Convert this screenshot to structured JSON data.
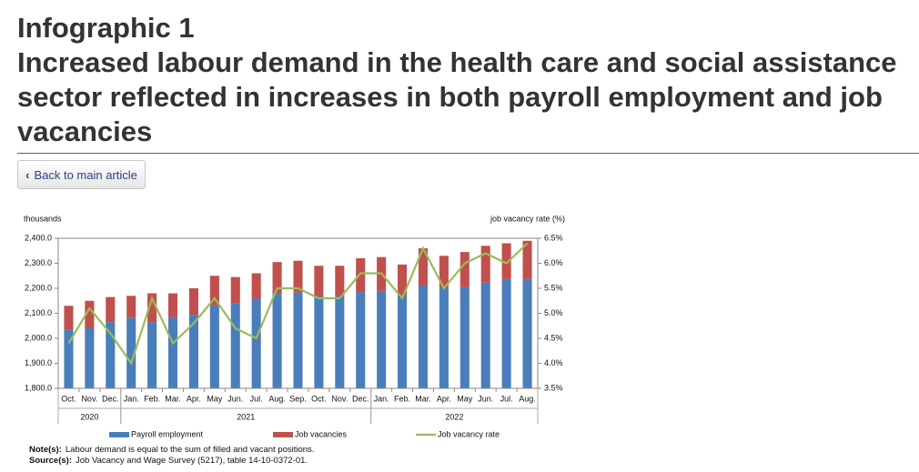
{
  "header": {
    "title": [
      "Infographic 1",
      "Increased labour demand in the health care and social assistance",
      "sector reflected in increases in both payroll employment and job",
      "vacancies"
    ],
    "back_button": "Back to main article"
  },
  "chart_data": {
    "type": "stacked-bar-line",
    "y_label": "thousands",
    "y2_label": "job vacancy rate (%)",
    "category_groups": [
      {
        "label": "2020",
        "categories": [
          "Oct.",
          "Nov.",
          "Dec."
        ]
      },
      {
        "label": "2021",
        "categories": [
          "Jan.",
          "Feb.",
          "Mar.",
          "Apr.",
          "May",
          "Jun.",
          "Jul.",
          "Aug.",
          "Sep.",
          "Oct.",
          "Nov.",
          "Dec."
        ]
      },
      {
        "label": "2022",
        "categories": [
          "Jan.",
          "Feb.",
          "Mar.",
          "Apr.",
          "May",
          "Jun.",
          "Jul.",
          "Aug."
        ]
      }
    ],
    "series": [
      {
        "name": "Payroll employment",
        "color": "#4a7ebb",
        "values": [
          2036,
          2040,
          2065,
          2083,
          2064,
          2084,
          2094,
          2131,
          2139,
          2158,
          2178,
          2183,
          2169,
          2169,
          2185,
          2190,
          2173,
          2211,
          2202,
          2204,
          2223,
          2237,
          2237
        ]
      },
      {
        "name": "Job vacancies",
        "color": "#c0504d",
        "values": [
          94,
          110,
          100,
          87,
          116,
          96,
          106,
          119,
          106,
          102,
          127,
          127,
          121,
          121,
          135,
          135,
          122,
          149,
          128,
          141,
          147,
          143,
          153
        ]
      },
      {
        "name": "Job vacancy rate",
        "color": "#9bbb59",
        "axis": "y2",
        "values": [
          4.4,
          5.1,
          4.6,
          4.0,
          5.3,
          4.4,
          4.8,
          5.3,
          4.7,
          4.5,
          5.5,
          5.5,
          5.3,
          5.3,
          5.8,
          5.8,
          5.3,
          6.3,
          5.5,
          6.0,
          6.2,
          6.0,
          6.4
        ]
      }
    ],
    "ylim": [
      1800,
      2400
    ],
    "yticks": [
      {
        "value": 1800,
        "label": "1,800.0"
      },
      {
        "value": 1900,
        "label": "1,900.0"
      },
      {
        "value": 2000,
        "label": "2,000.0"
      },
      {
        "value": 2100,
        "label": "2,100.0"
      },
      {
        "value": 2200,
        "label": "2,200.0"
      },
      {
        "value": 2300,
        "label": "2,300.0"
      },
      {
        "value": 2400,
        "label": "2,400.0"
      }
    ],
    "y2lim": [
      3.5,
      6.5
    ],
    "y2ticks": [
      {
        "value": 3.5,
        "label": "3.5%"
      },
      {
        "value": 4.0,
        "label": "4.0%"
      },
      {
        "value": 4.5,
        "label": "4.5%"
      },
      {
        "value": 5.0,
        "label": "5.0%"
      },
      {
        "value": 5.5,
        "label": "5.5%"
      },
      {
        "value": 6.0,
        "label": "6.0%"
      },
      {
        "value": 6.5,
        "label": "6.5%"
      }
    ],
    "grid": false,
    "note_label": "Note(s):",
    "note": "Labour demand is equal to the sum of filled and vacant positions.",
    "source_label": "Source(s):",
    "source": "Job Vacancy and Wage Survey (5217), table 14-10-0372-01."
  }
}
